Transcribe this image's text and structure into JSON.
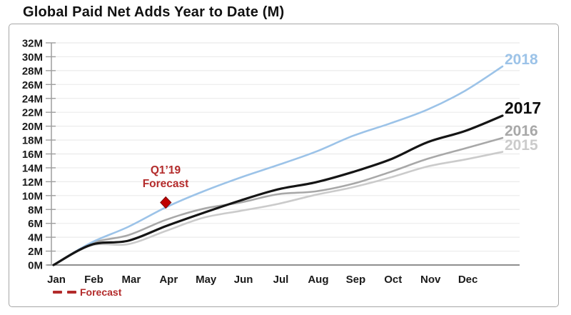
{
  "chart_data": {
    "type": "line",
    "title": "Global Paid Net Adds Year to Date (M)",
    "xlabel": "",
    "ylabel": "",
    "ylim": [
      0,
      32
    ],
    "y_tick_step": 2,
    "y_tick_labels": [
      "0M",
      "2M",
      "4M",
      "6M",
      "8M",
      "10M",
      "12M",
      "14M",
      "16M",
      "18M",
      "20M",
      "22M",
      "24M",
      "26M",
      "28M",
      "30M",
      "32M"
    ],
    "x_tick_labels": [
      "Jan",
      "Feb",
      "Mar",
      "Apr",
      "May",
      "Jun",
      "Jul",
      "Aug",
      "Sep",
      "Oct",
      "Nov",
      "Dec"
    ],
    "sampling_note": "cumulative values in millions sampled at month boundaries, 13 points from Jan 1 to Dec 31",
    "grid": "horizontal",
    "legend_position": "right-of-line-ends",
    "series": [
      {
        "name": "2015",
        "color": "#cbcbcb",
        "values": [
          0,
          2.8,
          3.0,
          4.9,
          6.8,
          7.8,
          8.8,
          10.1,
          11.2,
          12.6,
          14.2,
          15.2,
          16.3
        ]
      },
      {
        "name": "2016",
        "color": "#a8a8a8",
        "values": [
          0,
          3.1,
          4.3,
          6.5,
          8.1,
          9.0,
          10.2,
          10.6,
          11.7,
          13.4,
          15.3,
          16.8,
          18.3
        ]
      },
      {
        "name": "2018",
        "color": "#9cc3e8",
        "values": [
          0,
          3.2,
          5.5,
          8.3,
          10.6,
          12.6,
          14.4,
          16.3,
          18.6,
          20.4,
          22.4,
          25.1,
          28.6
        ]
      },
      {
        "name": "2017",
        "color": "#151515",
        "values": [
          0,
          2.9,
          3.5,
          5.6,
          7.5,
          9.3,
          10.9,
          11.9,
          13.4,
          15.2,
          17.7,
          19.3,
          21.5
        ]
      }
    ],
    "forecast_point": {
      "month_index": 3,
      "value": 9.0,
      "marker": "diamond",
      "color": "#c00000"
    }
  },
  "annotation": {
    "line1": "Q1’19",
    "line2": "Forecast"
  },
  "legend": {
    "label": "Forecast",
    "color": "#b32b2b"
  },
  "colors": {
    "accent_2018": "#9cc3e8",
    "accent_2017": "#151515",
    "accent_2016": "#a8a8a8",
    "accent_2015": "#cbcbcb",
    "forecast_red": "#c00000",
    "grid": "#ebebeb",
    "axis": "#9e9e9e"
  }
}
